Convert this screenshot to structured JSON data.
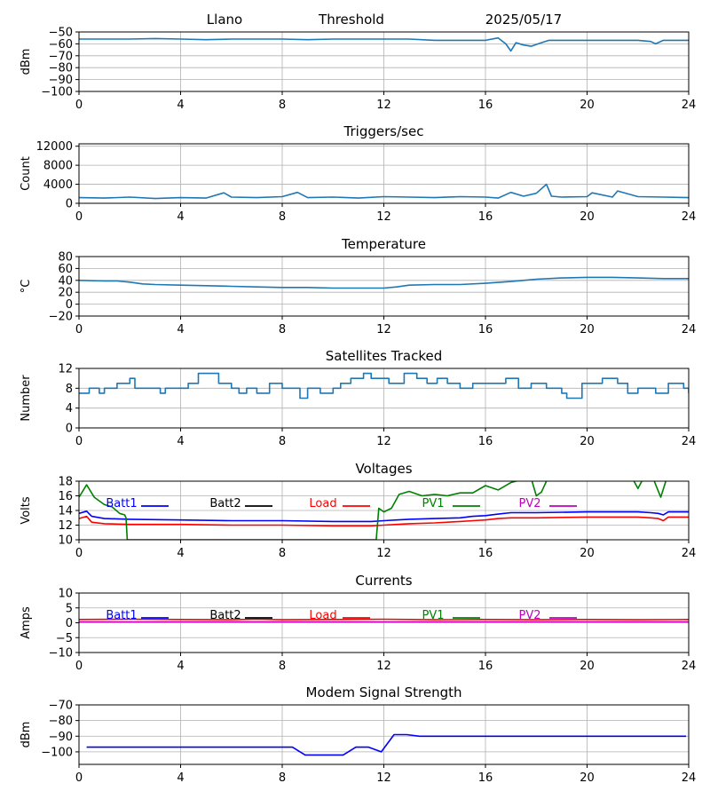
{
  "header": {
    "station": "Llano",
    "mode": "Threshold",
    "date": "2025/05/17"
  },
  "chart_data": [
    {
      "id": "threshold",
      "type": "line",
      "title": "",
      "ylabel": "dBm",
      "xlim": [
        0,
        24
      ],
      "ylim": [
        -100,
        -50
      ],
      "xticks": [
        0,
        4,
        8,
        12,
        16,
        20,
        24
      ],
      "yticks": [
        -100,
        -90,
        -80,
        -70,
        -60,
        -50
      ],
      "grid": true,
      "series": [
        {
          "color": "#1f77b4",
          "x": [
            0,
            1,
            2,
            3,
            4,
            5,
            6,
            7,
            8,
            9,
            10,
            11,
            12,
            13,
            14,
            15,
            16,
            16.5,
            16.8,
            17.0,
            17.2,
            17.5,
            17.8,
            18.2,
            18.5,
            19,
            20,
            21,
            22,
            22.5,
            22.7,
            23,
            23.5,
            24
          ],
          "y": [
            -56,
            -56,
            -56,
            -55.5,
            -56,
            -56.5,
            -56,
            -56,
            -56,
            -56.5,
            -56,
            -56,
            -56,
            -56,
            -57,
            -57,
            -57,
            -55,
            -60,
            -66,
            -59,
            -61,
            -62,
            -59,
            -57,
            -57,
            -57,
            -57,
            -57,
            -58,
            -60,
            -57,
            -57,
            -57
          ]
        }
      ]
    },
    {
      "id": "triggers",
      "type": "line",
      "title": "Triggers/sec",
      "ylabel": "Count",
      "xlim": [
        0,
        24
      ],
      "ylim": [
        0,
        12500
      ],
      "xticks": [
        0,
        4,
        8,
        12,
        16,
        20,
        24
      ],
      "yticks": [
        0,
        4000,
        8000,
        12000
      ],
      "grid": true,
      "series": [
        {
          "color": "#1f77b4",
          "x": [
            0,
            1,
            2,
            3,
            4,
            5,
            5.7,
            6,
            7,
            8,
            8.6,
            9,
            10,
            11,
            12,
            13,
            14,
            15,
            16,
            16.5,
            17,
            17.5,
            18,
            18.4,
            18.6,
            19,
            20,
            20.2,
            21,
            21.2,
            22,
            23,
            24
          ],
          "y": [
            1200,
            1100,
            1300,
            1000,
            1200,
            1100,
            2200,
            1300,
            1200,
            1400,
            2300,
            1200,
            1300,
            1100,
            1400,
            1300,
            1200,
            1400,
            1300,
            1100,
            2300,
            1500,
            2100,
            4000,
            1500,
            1300,
            1400,
            2200,
            1300,
            2600,
            1400,
            1300,
            1200
          ]
        }
      ]
    },
    {
      "id": "temperature",
      "type": "line",
      "title": "Temperature",
      "ylabel": "°C",
      "xlim": [
        0,
        24
      ],
      "ylim": [
        -20,
        80
      ],
      "xticks": [
        0,
        4,
        8,
        12,
        16,
        20,
        24
      ],
      "yticks": [
        -20,
        0,
        20,
        40,
        60,
        80
      ],
      "grid": true,
      "series": [
        {
          "color": "#1f77b4",
          "x": [
            0,
            1,
            1.5,
            2,
            2.5,
            3,
            4,
            5,
            6,
            7,
            8,
            9,
            10,
            11,
            12,
            12.5,
            13,
            14,
            15,
            16,
            17,
            17.5,
            18,
            19,
            20,
            21,
            22,
            23,
            24
          ],
          "y": [
            40,
            39,
            39,
            37,
            34,
            33,
            32,
            31,
            30,
            29,
            28,
            28,
            27,
            27,
            27,
            29,
            32,
            33,
            33,
            35,
            38,
            40,
            42,
            44,
            45,
            45,
            44,
            43,
            43
          ]
        }
      ]
    },
    {
      "id": "satellites",
      "type": "line",
      "title": "Satellites Tracked",
      "ylabel": "Number",
      "xlim": [
        0,
        24
      ],
      "ylim": [
        0,
        12
      ],
      "xticks": [
        0,
        4,
        8,
        12,
        16,
        20,
        24
      ],
      "yticks": [
        0,
        4,
        8,
        12
      ],
      "grid": true,
      "series": [
        {
          "color": "#1f77b4",
          "step": true,
          "x": [
            0,
            0.4,
            0.8,
            1,
            1.5,
            2,
            2.2,
            3,
            3.2,
            3.4,
            4.3,
            4.7,
            5.5,
            6,
            6.3,
            6.6,
            7,
            7.5,
            8,
            8.5,
            8.7,
            9,
            9.5,
            10,
            10.3,
            10.7,
            11.2,
            11.5,
            12.2,
            12.8,
            13.3,
            13.7,
            14.1,
            14.5,
            15,
            15.5,
            16,
            16.8,
            17.3,
            17.8,
            18.4,
            19,
            19.2,
            19.8,
            20.6,
            21.2,
            21.6,
            22,
            22.7,
            23.2,
            23.8,
            24
          ],
          "y": [
            7,
            8,
            7,
            8,
            9,
            10,
            8,
            8,
            7,
            8,
            9,
            11,
            9,
            8,
            7,
            8,
            7,
            9,
            8,
            8,
            6,
            8,
            7,
            8,
            9,
            10,
            11,
            10,
            9,
            11,
            10,
            9,
            10,
            9,
            8,
            9,
            9,
            10,
            8,
            9,
            8,
            7,
            6,
            9,
            10,
            9,
            7,
            8,
            7,
            9,
            8,
            7
          ]
        }
      ]
    },
    {
      "id": "voltages",
      "type": "line",
      "title": "Voltages",
      "ylabel": "Volts",
      "xlim": [
        0,
        24
      ],
      "ylim": [
        10,
        18
      ],
      "xticks": [
        0,
        4,
        8,
        12,
        16,
        20,
        24
      ],
      "yticks": [
        10,
        12,
        14,
        16,
        18
      ],
      "grid": true,
      "legend": [
        "Batt1",
        "Batt2",
        "Load",
        "PV1",
        "PV2"
      ],
      "legend_colors": [
        "#0000ff",
        "#000000",
        "#ff0000",
        "#008000",
        "#bf00bf"
      ],
      "series": [
        {
          "name": "Batt1",
          "color": "#0000ff",
          "x": [
            0,
            0.3,
            0.5,
            1,
            2,
            4,
            6,
            8,
            10,
            11.5,
            12,
            12.5,
            13,
            14,
            15,
            15.5,
            16,
            16.5,
            17,
            18,
            20,
            22,
            22.5,
            22.8,
            23,
            23.2,
            24
          ],
          "y": [
            13.6,
            13.9,
            13.2,
            12.9,
            12.8,
            12.7,
            12.6,
            12.6,
            12.5,
            12.5,
            12.6,
            12.7,
            12.8,
            12.9,
            13.0,
            13.2,
            13.3,
            13.5,
            13.7,
            13.7,
            13.8,
            13.8,
            13.7,
            13.6,
            13.4,
            13.8,
            13.8
          ]
        },
        {
          "name": "Load",
          "color": "#ff0000",
          "x": [
            0,
            0.3,
            0.5,
            1,
            2,
            4,
            6,
            8,
            10,
            11.5,
            12,
            12.5,
            13,
            14,
            15,
            15.5,
            16,
            16.5,
            17,
            18,
            20,
            22,
            22.5,
            22.8,
            23,
            23.2,
            24
          ],
          "y": [
            12.9,
            13.2,
            12.4,
            12.2,
            12.1,
            12.1,
            12.0,
            12.0,
            11.9,
            11.9,
            12.0,
            12.1,
            12.2,
            12.3,
            12.5,
            12.6,
            12.7,
            12.9,
            13.0,
            13.0,
            13.1,
            13.1,
            13.0,
            12.9,
            12.6,
            13.1,
            13.1
          ]
        },
        {
          "name": "PV1",
          "color": "#008000",
          "x": [
            0,
            0.3,
            0.6,
            1,
            1.3,
            1.6,
            1.8,
            1.85,
            1.9,
            11.7,
            11.75,
            11.8,
            12,
            12.3,
            12.6,
            13,
            13.5,
            14,
            14.5,
            15,
            15.5,
            16,
            16.5,
            17,
            17.3,
            17.6,
            17.8,
            18,
            18.2,
            18.4,
            18.6,
            21.5,
            21.8,
            22,
            22.2,
            22.6,
            22.9,
            23.1,
            23.3,
            23.5,
            24
          ],
          "y": [
            15.8,
            17.5,
            15.8,
            14.8,
            14.5,
            13.6,
            13.4,
            13.0,
            10.0,
            10.0,
            12.0,
            14.3,
            13.8,
            14.3,
            16.2,
            16.6,
            16.0,
            16.2,
            16.0,
            16.4,
            16.4,
            17.4,
            16.8,
            17.8,
            18.1,
            18.3,
            18.4,
            16.0,
            16.5,
            18.0,
            18.4,
            18.4,
            18.3,
            17.0,
            18.3,
            18.4,
            15.8,
            18.0,
            18.4,
            18.4,
            18.4
          ]
        }
      ]
    },
    {
      "id": "currents",
      "type": "line",
      "title": "Currents",
      "ylabel": "Amps",
      "xlim": [
        0,
        24
      ],
      "ylim": [
        -10,
        10
      ],
      "xticks": [
        0,
        4,
        8,
        12,
        16,
        20,
        24
      ],
      "yticks": [
        -10,
        -5,
        0,
        5,
        10
      ],
      "grid": true,
      "legend": [
        "Batt1",
        "Batt2",
        "Load",
        "PV1",
        "PV2"
      ],
      "legend_colors": [
        "#0000ff",
        "#000000",
        "#ff0000",
        "#008000",
        "#bf00bf"
      ],
      "series": [
        {
          "name": "Load",
          "color": "#ff0000",
          "x": [
            0,
            2,
            4,
            6,
            7,
            8,
            10,
            12,
            14,
            16,
            18,
            20,
            22,
            24
          ],
          "y": [
            1.1,
            1.2,
            1.1,
            1.0,
            1.2,
            1.0,
            1.1,
            1.2,
            1.0,
            1.1,
            1.0,
            1.1,
            1.0,
            1.1
          ]
        },
        {
          "name": "PV2",
          "color": "#bf00bf",
          "x": [
            0,
            24
          ],
          "y": [
            0.3,
            0.3
          ]
        }
      ]
    },
    {
      "id": "modem",
      "type": "line",
      "title": "Modem Signal Strength",
      "ylabel": "dBm",
      "xlim": [
        0,
        24
      ],
      "ylim": [
        -108,
        -70
      ],
      "xticks": [
        0,
        4,
        8,
        12,
        16,
        20,
        24
      ],
      "yticks": [
        -100,
        -90,
        -80,
        -70
      ],
      "grid": true,
      "series": [
        {
          "color": "#0000ff",
          "x": [
            0.3,
            8.4,
            8.9,
            10.4,
            10.9,
            11.4,
            11.9,
            12.4,
            12.9,
            13.4,
            23.9
          ],
          "y": [
            -97,
            -97,
            -102,
            -102,
            -97,
            -97,
            -100,
            -89,
            -89,
            -90,
            -90
          ]
        }
      ]
    }
  ]
}
